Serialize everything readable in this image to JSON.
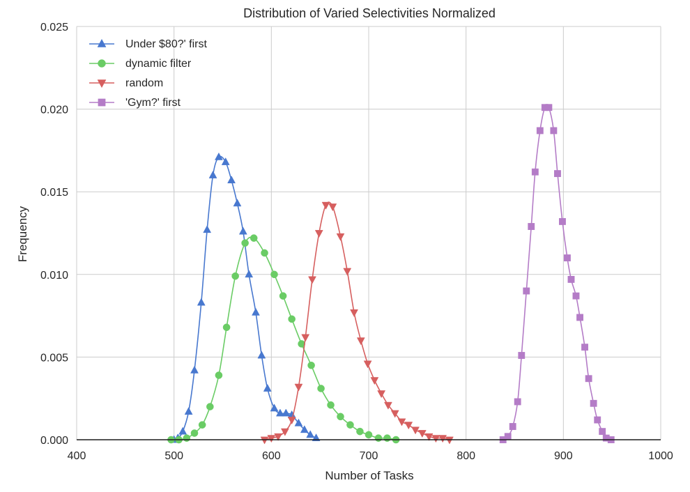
{
  "chart_data": {
    "type": "line",
    "title": "Distribution of Varied Selectivities Normalized",
    "xlabel": "Number of Tasks",
    "ylabel": "Frequency",
    "xlim": [
      400,
      1000
    ],
    "ylim": [
      0,
      0.025
    ],
    "x_ticks": [
      "400",
      "500",
      "600",
      "700",
      "800",
      "900",
      "1000"
    ],
    "y_ticks": [
      "0.000",
      "0.005",
      "0.010",
      "0.015",
      "0.020",
      "0.025"
    ],
    "grid": true,
    "legend_position": "upper-left",
    "series": [
      {
        "name": "Under $80?' first",
        "color": "#4878cf",
        "marker": "triangle-up",
        "points": [
          [
            500,
            0
          ],
          [
            504,
            0.0001
          ],
          [
            509,
            0.0005
          ],
          [
            515,
            0.0017
          ],
          [
            521,
            0.0042
          ],
          [
            528,
            0.0083
          ],
          [
            534,
            0.0127
          ],
          [
            540,
            0.016
          ],
          [
            546,
            0.0171
          ],
          [
            553,
            0.0168
          ],
          [
            559,
            0.0157
          ],
          [
            565,
            0.0143
          ],
          [
            571,
            0.0126
          ],
          [
            577,
            0.01
          ],
          [
            584,
            0.0077
          ],
          [
            590,
            0.0051
          ],
          [
            596,
            0.0031
          ],
          [
            603,
            0.0019
          ],
          [
            609,
            0.0016
          ],
          [
            615,
            0.0016
          ],
          [
            621,
            0.0015
          ],
          [
            628,
            0.001
          ],
          [
            634,
            0.0006
          ],
          [
            640,
            0.0003
          ],
          [
            646,
            0.0001
          ]
        ]
      },
      {
        "name": "dynamic filter",
        "color": "#6acc65",
        "marker": "circle",
        "points": [
          [
            497,
            0
          ],
          [
            505,
            0
          ],
          [
            513,
            0.0001
          ],
          [
            521,
            0.0004
          ],
          [
            529,
            0.0009
          ],
          [
            537,
            0.002
          ],
          [
            546,
            0.0039
          ],
          [
            554,
            0.0068
          ],
          [
            563,
            0.0099
          ],
          [
            573,
            0.0119
          ],
          [
            582,
            0.0122
          ],
          [
            593,
            0.0113
          ],
          [
            603,
            0.01
          ],
          [
            612,
            0.0087
          ],
          [
            621,
            0.0073
          ],
          [
            631,
            0.0058
          ],
          [
            641,
            0.0045
          ],
          [
            651,
            0.0031
          ],
          [
            661,
            0.0021
          ],
          [
            671,
            0.0014
          ],
          [
            681,
            0.0009
          ],
          [
            691,
            0.0005
          ],
          [
            700,
            0.0003
          ],
          [
            710,
            0.0001
          ],
          [
            719,
            0.0001
          ],
          [
            728,
            0
          ]
        ]
      },
      {
        "name": "random",
        "color": "#d65f5f",
        "marker": "triangle-down",
        "points": [
          [
            593,
            0
          ],
          [
            600,
            0.0001
          ],
          [
            607,
            0.0002
          ],
          [
            614,
            0.0005
          ],
          [
            621,
            0.0012
          ],
          [
            628,
            0.0032
          ],
          [
            635,
            0.0062
          ],
          [
            642,
            0.0097
          ],
          [
            649,
            0.0125
          ],
          [
            656,
            0.0142
          ],
          [
            663,
            0.0141
          ],
          [
            671,
            0.0123
          ],
          [
            678,
            0.0102
          ],
          [
            685,
            0.0077
          ],
          [
            692,
            0.006
          ],
          [
            699,
            0.0046
          ],
          [
            706,
            0.0036
          ],
          [
            713,
            0.0028
          ],
          [
            720,
            0.0021
          ],
          [
            727,
            0.0016
          ],
          [
            734,
            0.0011
          ],
          [
            741,
            0.0009
          ],
          [
            748,
            0.0006
          ],
          [
            755,
            0.0004
          ],
          [
            762,
            0.0002
          ],
          [
            769,
            0.0001
          ],
          [
            776,
            0.0001
          ],
          [
            783,
            0
          ]
        ]
      },
      {
        "name": "'Gym?' first",
        "color": "#b47cc7",
        "marker": "square",
        "points": [
          [
            838,
            0
          ],
          [
            843,
            0.0002
          ],
          [
            848,
            0.0008
          ],
          [
            853,
            0.0023
          ],
          [
            857,
            0.0051
          ],
          [
            862,
            0.009
          ],
          [
            867,
            0.0129
          ],
          [
            871,
            0.0162
          ],
          [
            876,
            0.0187
          ],
          [
            881,
            0.0201
          ],
          [
            885,
            0.0201
          ],
          [
            890,
            0.0187
          ],
          [
            894,
            0.0161
          ],
          [
            899,
            0.0132
          ],
          [
            904,
            0.011
          ],
          [
            908,
            0.0097
          ],
          [
            913,
            0.0087
          ],
          [
            917,
            0.0074
          ],
          [
            922,
            0.0056
          ],
          [
            926,
            0.0037
          ],
          [
            931,
            0.0022
          ],
          [
            935,
            0.0012
          ],
          [
            940,
            0.0005
          ],
          [
            944,
            0.0001
          ],
          [
            949,
            0
          ]
        ]
      }
    ]
  }
}
